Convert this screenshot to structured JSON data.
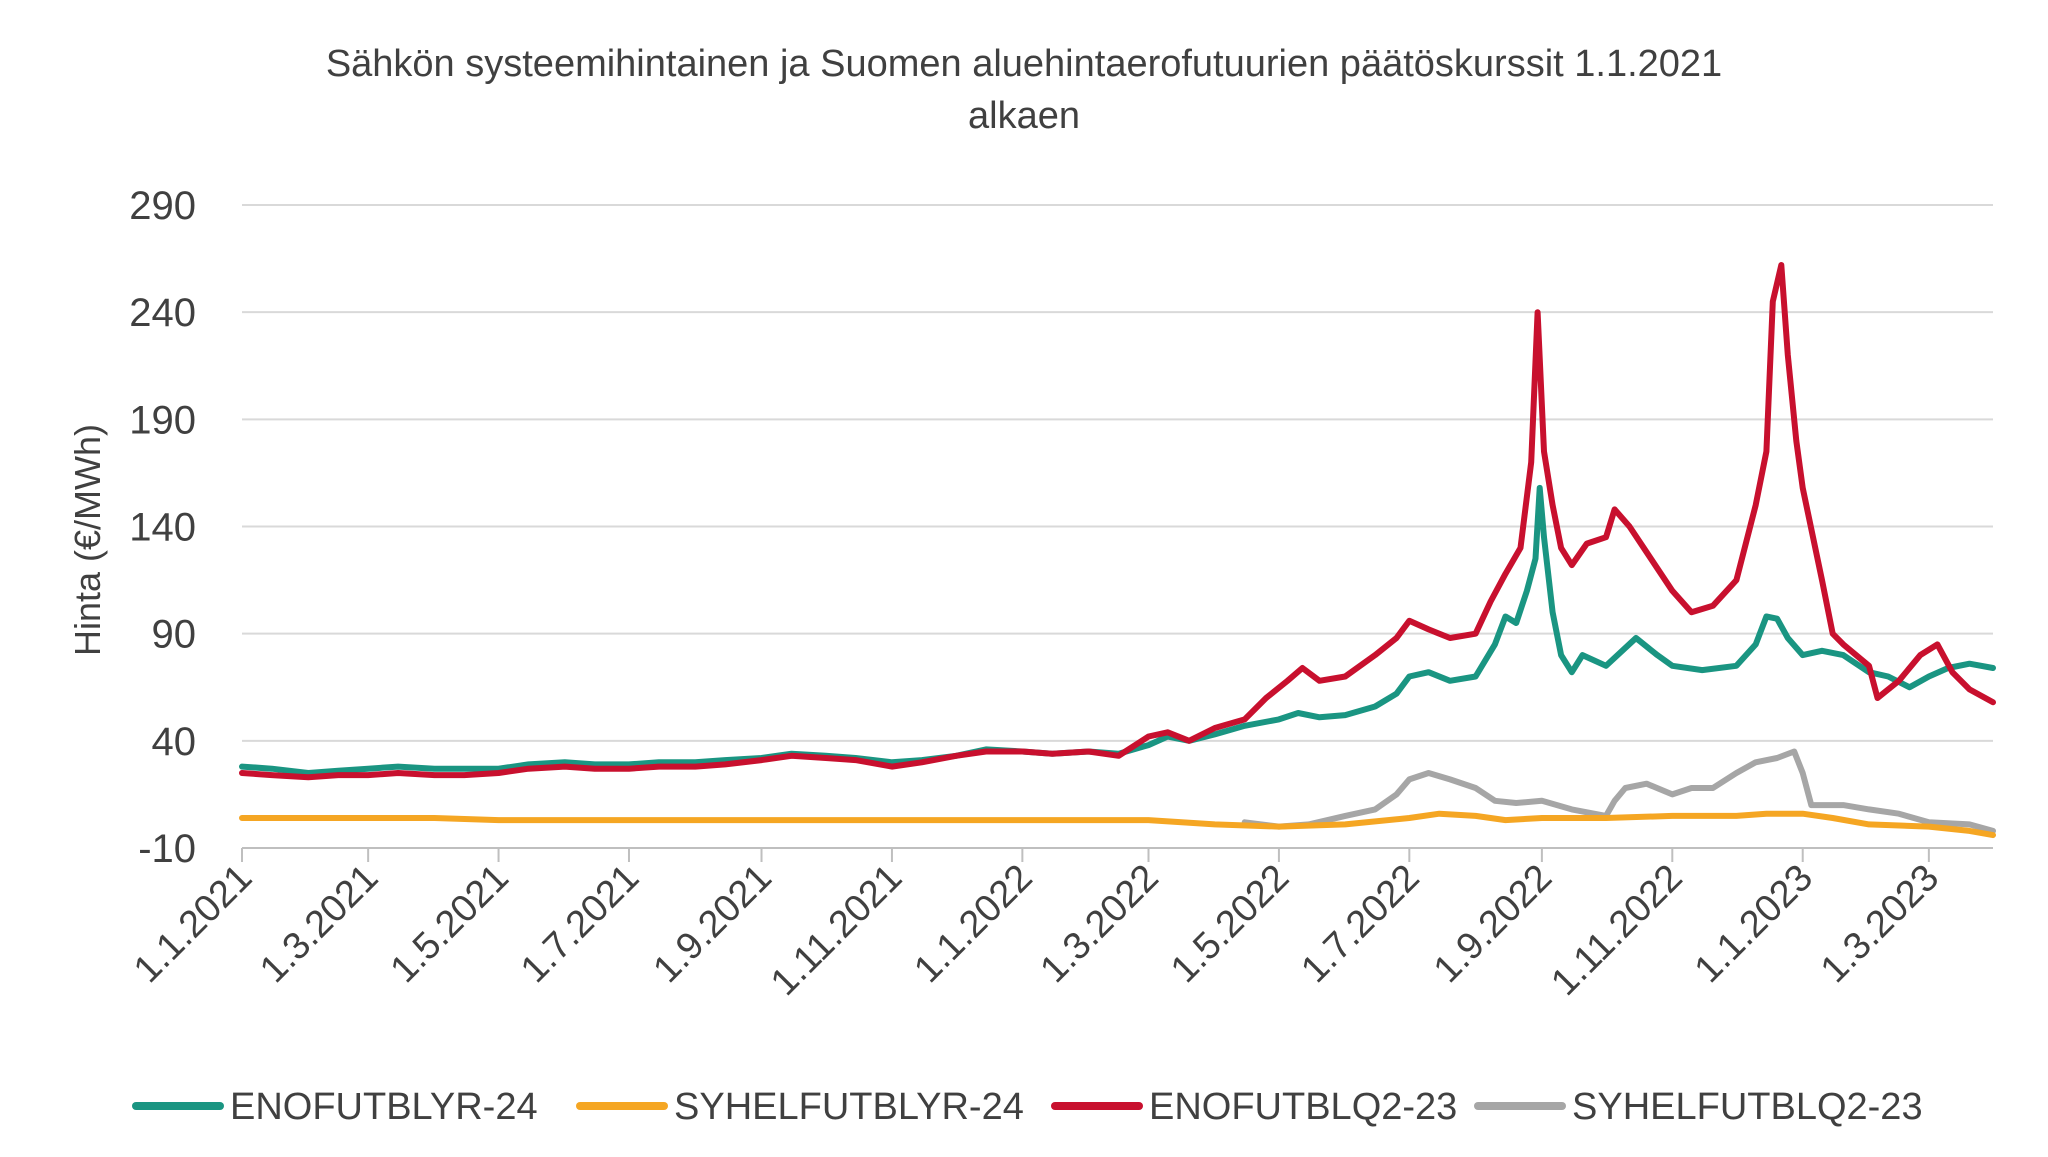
{
  "chart_data": {
    "type": "line",
    "title_line1": "Sähkön systeemihintainen ja Suomen aluehintaerofutuurien päätöskurssit 1.1.2021",
    "title_line2": "alkaen",
    "ylabel": "Hinta (€/MWh)",
    "xlabel": "",
    "ylim": [
      -10,
      290
    ],
    "yticks": [
      -10,
      40,
      90,
      140,
      190,
      240,
      290
    ],
    "xlim": [
      "2021-01-01",
      "2023-03-31"
    ],
    "xticks": [
      {
        "date": "2021-01-01",
        "label": "1.1.2021"
      },
      {
        "date": "2021-03-01",
        "label": "1.3.2021"
      },
      {
        "date": "2021-05-01",
        "label": "1.5.2021"
      },
      {
        "date": "2021-07-01",
        "label": "1.7.2021"
      },
      {
        "date": "2021-09-01",
        "label": "1.9.2021"
      },
      {
        "date": "2021-11-01",
        "label": "1.11.2021"
      },
      {
        "date": "2022-01-01",
        "label": "1.1.2022"
      },
      {
        "date": "2022-03-01",
        "label": "1.3.2022"
      },
      {
        "date": "2022-05-01",
        "label": "1.5.2022"
      },
      {
        "date": "2022-07-01",
        "label": "1.7.2022"
      },
      {
        "date": "2022-09-01",
        "label": "1.9.2022"
      },
      {
        "date": "2022-11-01",
        "label": "1.11.2022"
      },
      {
        "date": "2023-01-01",
        "label": "1.1.2023"
      },
      {
        "date": "2023-03-01",
        "label": "1.3.2023"
      }
    ],
    "grid": true,
    "legend_position": "bottom",
    "series": [
      {
        "name": "ENOFUTBLYR-24",
        "color": "#1a9582",
        "points": [
          [
            "2021-01-01",
            28
          ],
          [
            "2021-01-15",
            27
          ],
          [
            "2021-02-01",
            25
          ],
          [
            "2021-02-15",
            26
          ],
          [
            "2021-03-01",
            27
          ],
          [
            "2021-03-15",
            28
          ],
          [
            "2021-04-01",
            27
          ],
          [
            "2021-04-15",
            27
          ],
          [
            "2021-05-01",
            27
          ],
          [
            "2021-05-15",
            29
          ],
          [
            "2021-06-01",
            30
          ],
          [
            "2021-06-15",
            29
          ],
          [
            "2021-07-01",
            29
          ],
          [
            "2021-07-15",
            30
          ],
          [
            "2021-08-01",
            30
          ],
          [
            "2021-08-15",
            31
          ],
          [
            "2021-09-01",
            32
          ],
          [
            "2021-09-15",
            34
          ],
          [
            "2021-10-01",
            33
          ],
          [
            "2021-10-15",
            32
          ],
          [
            "2021-11-01",
            30
          ],
          [
            "2021-11-15",
            31
          ],
          [
            "2021-12-01",
            33
          ],
          [
            "2021-12-15",
            36
          ],
          [
            "2022-01-01",
            35
          ],
          [
            "2022-01-15",
            34
          ],
          [
            "2022-02-01",
            35
          ],
          [
            "2022-02-15",
            34
          ],
          [
            "2022-03-01",
            38
          ],
          [
            "2022-03-10",
            42
          ],
          [
            "2022-03-20",
            40
          ],
          [
            "2022-04-01",
            43
          ],
          [
            "2022-04-15",
            47
          ],
          [
            "2022-05-01",
            50
          ],
          [
            "2022-05-10",
            53
          ],
          [
            "2022-05-20",
            51
          ],
          [
            "2022-06-01",
            52
          ],
          [
            "2022-06-15",
            56
          ],
          [
            "2022-06-25",
            62
          ],
          [
            "2022-07-01",
            70
          ],
          [
            "2022-07-10",
            72
          ],
          [
            "2022-07-20",
            68
          ],
          [
            "2022-08-01",
            70
          ],
          [
            "2022-08-10",
            85
          ],
          [
            "2022-08-15",
            98
          ],
          [
            "2022-08-20",
            95
          ],
          [
            "2022-08-25",
            110
          ],
          [
            "2022-08-29",
            125
          ],
          [
            "2022-08-31",
            158
          ],
          [
            "2022-09-02",
            135
          ],
          [
            "2022-09-06",
            100
          ],
          [
            "2022-09-10",
            80
          ],
          [
            "2022-09-15",
            72
          ],
          [
            "2022-09-20",
            80
          ],
          [
            "2022-10-01",
            75
          ],
          [
            "2022-10-15",
            88
          ],
          [
            "2022-10-25",
            80
          ],
          [
            "2022-11-01",
            75
          ],
          [
            "2022-11-15",
            73
          ],
          [
            "2022-12-01",
            75
          ],
          [
            "2022-12-10",
            85
          ],
          [
            "2022-12-15",
            98
          ],
          [
            "2022-12-20",
            97
          ],
          [
            "2022-12-25",
            88
          ],
          [
            "2023-01-01",
            80
          ],
          [
            "2023-01-10",
            82
          ],
          [
            "2023-01-20",
            80
          ],
          [
            "2023-02-01",
            72
          ],
          [
            "2023-02-10",
            70
          ],
          [
            "2023-02-20",
            65
          ],
          [
            "2023-03-01",
            70
          ],
          [
            "2023-03-10",
            74
          ],
          [
            "2023-03-20",
            76
          ],
          [
            "2023-03-31",
            74
          ]
        ]
      },
      {
        "name": "SYHELFUTBLYR-24",
        "color": "#f5a623",
        "points": [
          [
            "2021-01-01",
            4
          ],
          [
            "2021-02-01",
            4
          ],
          [
            "2021-03-01",
            4
          ],
          [
            "2021-04-01",
            4
          ],
          [
            "2021-05-01",
            3
          ],
          [
            "2021-06-01",
            3
          ],
          [
            "2021-07-01",
            3
          ],
          [
            "2021-08-01",
            3
          ],
          [
            "2021-09-01",
            3
          ],
          [
            "2021-10-01",
            3
          ],
          [
            "2021-11-01",
            3
          ],
          [
            "2021-12-01",
            3
          ],
          [
            "2022-01-01",
            3
          ],
          [
            "2022-02-01",
            3
          ],
          [
            "2022-03-01",
            3
          ],
          [
            "2022-04-01",
            1
          ],
          [
            "2022-05-01",
            0
          ],
          [
            "2022-06-01",
            1
          ],
          [
            "2022-07-01",
            4
          ],
          [
            "2022-07-15",
            6
          ],
          [
            "2022-08-01",
            5
          ],
          [
            "2022-08-15",
            3
          ],
          [
            "2022-09-01",
            4
          ],
          [
            "2022-10-01",
            4
          ],
          [
            "2022-11-01",
            5
          ],
          [
            "2022-12-01",
            5
          ],
          [
            "2022-12-15",
            6
          ],
          [
            "2023-01-01",
            6
          ],
          [
            "2023-01-15",
            4
          ],
          [
            "2023-02-01",
            1
          ],
          [
            "2023-03-01",
            0
          ],
          [
            "2023-03-20",
            -2
          ],
          [
            "2023-03-31",
            -4
          ]
        ]
      },
      {
        "name": "ENOFUTBLQ2-23",
        "color": "#c8102e",
        "points": [
          [
            "2021-01-01",
            25
          ],
          [
            "2021-01-15",
            24
          ],
          [
            "2021-02-01",
            23
          ],
          [
            "2021-02-15",
            24
          ],
          [
            "2021-03-01",
            24
          ],
          [
            "2021-03-15",
            25
          ],
          [
            "2021-04-01",
            24
          ],
          [
            "2021-04-15",
            24
          ],
          [
            "2021-05-01",
            25
          ],
          [
            "2021-05-15",
            27
          ],
          [
            "2021-06-01",
            28
          ],
          [
            "2021-06-15",
            27
          ],
          [
            "2021-07-01",
            27
          ],
          [
            "2021-07-15",
            28
          ],
          [
            "2021-08-01",
            28
          ],
          [
            "2021-08-15",
            29
          ],
          [
            "2021-09-01",
            31
          ],
          [
            "2021-09-15",
            33
          ],
          [
            "2021-10-01",
            32
          ],
          [
            "2021-10-15",
            31
          ],
          [
            "2021-11-01",
            28
          ],
          [
            "2021-11-15",
            30
          ],
          [
            "2021-12-01",
            33
          ],
          [
            "2021-12-15",
            35
          ],
          [
            "2022-01-01",
            35
          ],
          [
            "2022-01-15",
            34
          ],
          [
            "2022-02-01",
            35
          ],
          [
            "2022-02-15",
            33
          ],
          [
            "2022-03-01",
            42
          ],
          [
            "2022-03-10",
            44
          ],
          [
            "2022-03-20",
            40
          ],
          [
            "2022-04-01",
            46
          ],
          [
            "2022-04-15",
            50
          ],
          [
            "2022-04-25",
            60
          ],
          [
            "2022-05-05",
            68
          ],
          [
            "2022-05-12",
            74
          ],
          [
            "2022-05-20",
            68
          ],
          [
            "2022-06-01",
            70
          ],
          [
            "2022-06-15",
            80
          ],
          [
            "2022-06-25",
            88
          ],
          [
            "2022-07-01",
            96
          ],
          [
            "2022-07-10",
            92
          ],
          [
            "2022-07-20",
            88
          ],
          [
            "2022-08-01",
            90
          ],
          [
            "2022-08-08",
            105
          ],
          [
            "2022-08-15",
            118
          ],
          [
            "2022-08-22",
            130
          ],
          [
            "2022-08-27",
            170
          ],
          [
            "2022-08-30",
            240
          ],
          [
            "2022-09-02",
            175
          ],
          [
            "2022-09-06",
            150
          ],
          [
            "2022-09-10",
            130
          ],
          [
            "2022-09-15",
            122
          ],
          [
            "2022-09-22",
            132
          ],
          [
            "2022-10-01",
            135
          ],
          [
            "2022-10-05",
            148
          ],
          [
            "2022-10-12",
            140
          ],
          [
            "2022-10-20",
            128
          ],
          [
            "2022-11-01",
            110
          ],
          [
            "2022-11-10",
            100
          ],
          [
            "2022-11-20",
            103
          ],
          [
            "2022-12-01",
            115
          ],
          [
            "2022-12-10",
            150
          ],
          [
            "2022-12-15",
            175
          ],
          [
            "2022-12-18",
            245
          ],
          [
            "2022-12-22",
            262
          ],
          [
            "2022-12-25",
            220
          ],
          [
            "2022-12-29",
            180
          ],
          [
            "2023-01-01",
            158
          ],
          [
            "2023-01-10",
            115
          ],
          [
            "2023-01-15",
            90
          ],
          [
            "2023-01-20",
            85
          ],
          [
            "2023-02-01",
            75
          ],
          [
            "2023-02-05",
            60
          ],
          [
            "2023-02-15",
            68
          ],
          [
            "2023-02-25",
            80
          ],
          [
            "2023-03-05",
            85
          ],
          [
            "2023-03-12",
            72
          ],
          [
            "2023-03-20",
            64
          ],
          [
            "2023-03-31",
            58
          ]
        ]
      },
      {
        "name": "SYHELFUTBLQ2-23",
        "color": "#a6a6a6",
        "points": [
          [
            "2022-04-15",
            2
          ],
          [
            "2022-05-01",
            0
          ],
          [
            "2022-05-15",
            1
          ],
          [
            "2022-06-01",
            5
          ],
          [
            "2022-06-15",
            8
          ],
          [
            "2022-06-25",
            15
          ],
          [
            "2022-07-01",
            22
          ],
          [
            "2022-07-10",
            25
          ],
          [
            "2022-07-20",
            22
          ],
          [
            "2022-08-01",
            18
          ],
          [
            "2022-08-10",
            12
          ],
          [
            "2022-08-20",
            11
          ],
          [
            "2022-09-01",
            12
          ],
          [
            "2022-09-15",
            8
          ],
          [
            "2022-10-01",
            5
          ],
          [
            "2022-10-05",
            12
          ],
          [
            "2022-10-10",
            18
          ],
          [
            "2022-10-20",
            20
          ],
          [
            "2022-11-01",
            15
          ],
          [
            "2022-11-10",
            18
          ],
          [
            "2022-11-20",
            18
          ],
          [
            "2022-12-01",
            25
          ],
          [
            "2022-12-10",
            30
          ],
          [
            "2022-12-20",
            32
          ],
          [
            "2022-12-28",
            35
          ],
          [
            "2023-01-01",
            25
          ],
          [
            "2023-01-05",
            10
          ],
          [
            "2023-01-20",
            10
          ],
          [
            "2023-02-01",
            8
          ],
          [
            "2023-02-15",
            6
          ],
          [
            "2023-03-01",
            2
          ],
          [
            "2023-03-20",
            1
          ],
          [
            "2023-03-31",
            -2
          ]
        ]
      }
    ]
  }
}
